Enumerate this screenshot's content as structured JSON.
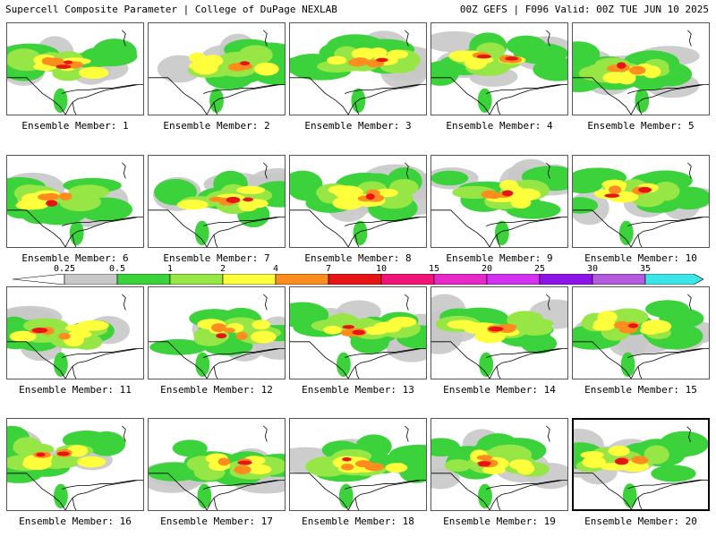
{
  "header": {
    "title": "Supercell Composite Parameter | College of DuPage NEXLAB",
    "run_info": "00Z GEFS | F096 Valid: 00Z TUE JUN 10 2025"
  },
  "colorbar": {
    "labels": [
      "0.25",
      "0.5",
      "1",
      "2",
      "4",
      "7",
      "10",
      "15",
      "20",
      "25",
      "30",
      "35"
    ],
    "colors": [
      "#c8c8c8",
      "#3cd23c",
      "#96e646",
      "#ffff3c",
      "#ff8c1e",
      "#e61414",
      "#f01478",
      "#e628c8",
      "#d232f0",
      "#8c14e6",
      "#b45adc",
      "#3ce6e6"
    ]
  },
  "panels": [
    {
      "label": "Ensemble Member: 1"
    },
    {
      "label": "Ensemble Member: 2"
    },
    {
      "label": "Ensemble Member: 3"
    },
    {
      "label": "Ensemble Member: 4"
    },
    {
      "label": "Ensemble Member: 5"
    },
    {
      "label": "Ensemble Member: 6"
    },
    {
      "label": "Ensemble Member: 7"
    },
    {
      "label": "Ensemble Member: 8"
    },
    {
      "label": "Ensemble Member: 9"
    },
    {
      "label": "Ensemble Member: 10"
    },
    {
      "label": "Ensemble Member: 11"
    },
    {
      "label": "Ensemble Member: 12"
    },
    {
      "label": "Ensemble Member: 13"
    },
    {
      "label": "Ensemble Member: 14"
    },
    {
      "label": "Ensemble Member: 15"
    },
    {
      "label": "Ensemble Member: 16"
    },
    {
      "label": "Ensemble Member: 17"
    },
    {
      "label": "Ensemble Member: 18"
    },
    {
      "label": "Ensemble Member: 19"
    },
    {
      "label": "Ensemble Member: 20",
      "selected": true
    }
  ]
}
